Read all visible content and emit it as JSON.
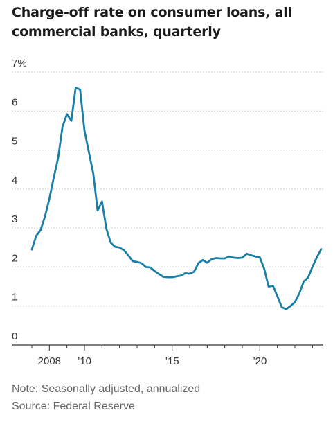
{
  "title": "Charge-off rate on consumer loans, all commercial banks, quarterly",
  "notes": {
    "note": "Note: Seasonally adjusted, annualized",
    "source": "Source: Federal Reserve"
  },
  "colors": {
    "line": "#1a7fa6",
    "grid": "#bfbfbf",
    "axis": "#333333"
  },
  "chart_data": {
    "type": "line",
    "title": "Charge-off rate on consumer loans, all commercial banks, quarterly",
    "xlabel": "",
    "ylabel": "",
    "xlim": [
      2006.9,
      2023.6
    ],
    "ylim": [
      0,
      7
    ],
    "y_ticks": [
      {
        "value": 7,
        "label": "7%"
      },
      {
        "value": 6,
        "label": "6"
      },
      {
        "value": 5,
        "label": "5"
      },
      {
        "value": 4,
        "label": "4"
      },
      {
        "value": 3,
        "label": "3"
      },
      {
        "value": 2,
        "label": "2"
      },
      {
        "value": 1,
        "label": "1"
      },
      {
        "value": 0,
        "label": "0"
      }
    ],
    "x_ticks": [
      {
        "value": 2008,
        "label": "2008"
      },
      {
        "value": 2010,
        "label": "’10"
      },
      {
        "value": 2015,
        "label": "’15"
      },
      {
        "value": 2020,
        "label": "’20"
      }
    ],
    "grid": true,
    "series": [
      {
        "x": [
          2007.0,
          2007.25,
          2007.5,
          2007.75,
          2008.0,
          2008.25,
          2008.5,
          2008.75,
          2009.0,
          2009.25,
          2009.5,
          2009.75,
          2010.0,
          2010.25,
          2010.5,
          2010.75,
          2011.0,
          2011.25,
          2011.5,
          2011.75,
          2012.0,
          2012.25,
          2012.5,
          2012.75,
          2013.0,
          2013.25,
          2013.5,
          2013.75,
          2014.0,
          2014.25,
          2014.5,
          2014.75,
          2015.0,
          2015.25,
          2015.5,
          2015.75,
          2016.0,
          2016.25,
          2016.5,
          2016.75,
          2017.0,
          2017.25,
          2017.5,
          2017.75,
          2018.0,
          2018.25,
          2018.5,
          2018.75,
          2019.0,
          2019.25,
          2019.5,
          2019.75,
          2020.0,
          2020.25,
          2020.5,
          2020.75,
          2021.0,
          2021.25,
          2021.5,
          2021.75,
          2022.0,
          2022.25,
          2022.5,
          2022.75,
          2023.0,
          2023.25,
          2023.5
        ],
        "values": [
          2.45,
          2.8,
          2.95,
          3.3,
          3.75,
          4.3,
          4.8,
          5.6,
          5.92,
          5.75,
          6.6,
          6.55,
          5.5,
          4.95,
          4.4,
          3.45,
          3.68,
          2.98,
          2.62,
          2.52,
          2.5,
          2.43,
          2.3,
          2.15,
          2.13,
          2.1,
          2.0,
          1.99,
          1.9,
          1.82,
          1.75,
          1.74,
          1.74,
          1.76,
          1.78,
          1.84,
          1.83,
          1.88,
          2.1,
          2.18,
          2.11,
          2.2,
          2.23,
          2.22,
          2.22,
          2.27,
          2.24,
          2.23,
          2.24,
          2.34,
          2.3,
          2.27,
          2.25,
          1.95,
          1.5,
          1.52,
          1.25,
          0.97,
          0.92,
          1.0,
          1.1,
          1.32,
          1.63,
          1.73,
          2.0,
          2.25,
          2.46
        ]
      }
    ]
  }
}
